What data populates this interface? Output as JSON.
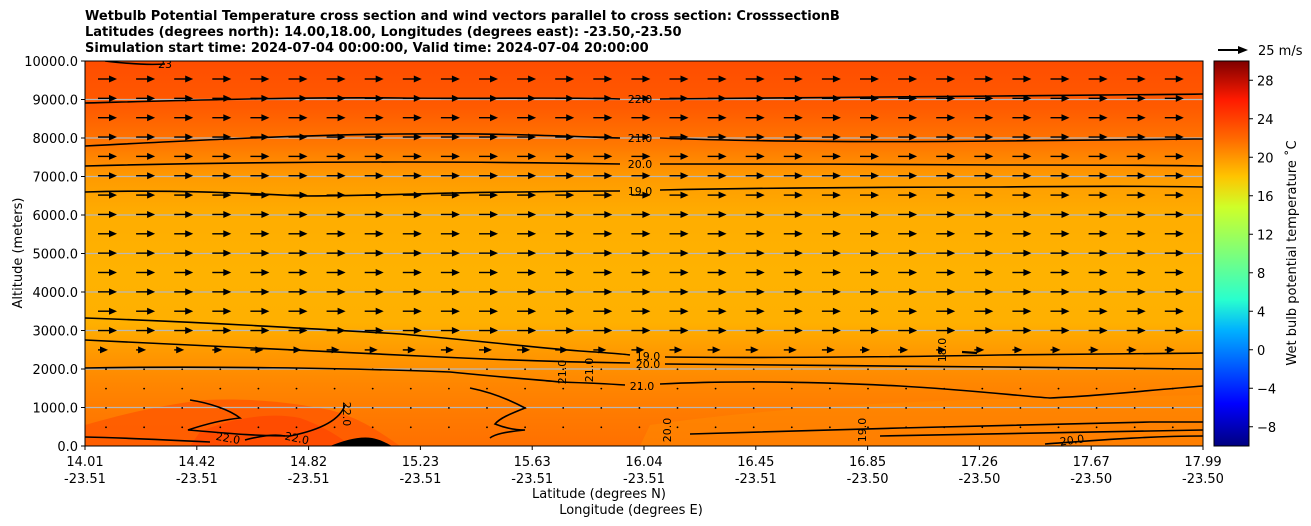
{
  "chart_data": {
    "type": "contour",
    "title": [
      "Wetbulb Potential Temperature cross section and wind vectors parallel to cross section: CrosssectionB",
      "Latitudes (degrees north): 14.00,18.00, Longitudes (degrees east): -23.50,-23.50",
      "Simulation start time: 2024-07-04 00:00:00, Valid time: 2024-07-04 20:00:00"
    ],
    "xlabel": "Latitude (degrees N)",
    "xlabel2": "Longitude (degrees E)",
    "ylabel": "Altitude (meters)",
    "x_ticks": [
      {
        "lat": "14.01",
        "lon": "-23.51"
      },
      {
        "lat": "14.42",
        "lon": "-23.51"
      },
      {
        "lat": "14.82",
        "lon": "-23.51"
      },
      {
        "lat": "15.23",
        "lon": "-23.51"
      },
      {
        "lat": "15.63",
        "lon": "-23.51"
      },
      {
        "lat": "16.04",
        "lon": "-23.51"
      },
      {
        "lat": "16.45",
        "lon": "-23.51"
      },
      {
        "lat": "16.85",
        "lon": "-23.50"
      },
      {
        "lat": "17.26",
        "lon": "-23.50"
      },
      {
        "lat": "17.67",
        "lon": "-23.50"
      },
      {
        "lat": "17.99",
        "lon": "-23.50"
      }
    ],
    "y_ticks": [
      "0.0",
      "1000.0",
      "2000.0",
      "3000.0",
      "4000.0",
      "5000.0",
      "6000.0",
      "7000.0",
      "8000.0",
      "9000.0",
      "10000.0"
    ],
    "ylim": [
      0,
      10000
    ],
    "colorbar": {
      "label": "Wet bulb potential temperature $^\\circ$C",
      "label_text": "Wet bulb potential temperature ˚C",
      "ticks": [
        "−8",
        "−4",
        "0",
        "4",
        "8",
        "12",
        "16",
        "20",
        "24",
        "28"
      ],
      "range": [
        -10,
        30
      ]
    },
    "wind_key": "25 m/s",
    "contours": [
      {
        "value": 22.0,
        "label": "22.0",
        "altitude_m": 9000
      },
      {
        "value": 21.0,
        "label": "21.0",
        "altitude_m": 8000
      },
      {
        "value": 20.0,
        "label": "20.0",
        "altitude_m": 7200
      },
      {
        "value": 19.0,
        "label": "19.0",
        "altitude_m": 6550
      },
      {
        "value": 19.0,
        "label": "19.0",
        "altitude_m": 2300
      },
      {
        "value": 20.0,
        "label": "20.0",
        "altitude_m": 2100
      },
      {
        "value": 21.0,
        "label": "21.0",
        "altitude_m": 1600
      },
      {
        "value": 22.0,
        "label": "22.0",
        "altitude_m": 800
      },
      {
        "value": 23.0,
        "label": "23",
        "altitude_m": 9950
      }
    ],
    "extra_labels": [
      "21.0",
      "21.0",
      "18.0",
      "22.0",
      "22.0",
      "20.0",
      "19.0",
      "20.0"
    ]
  }
}
